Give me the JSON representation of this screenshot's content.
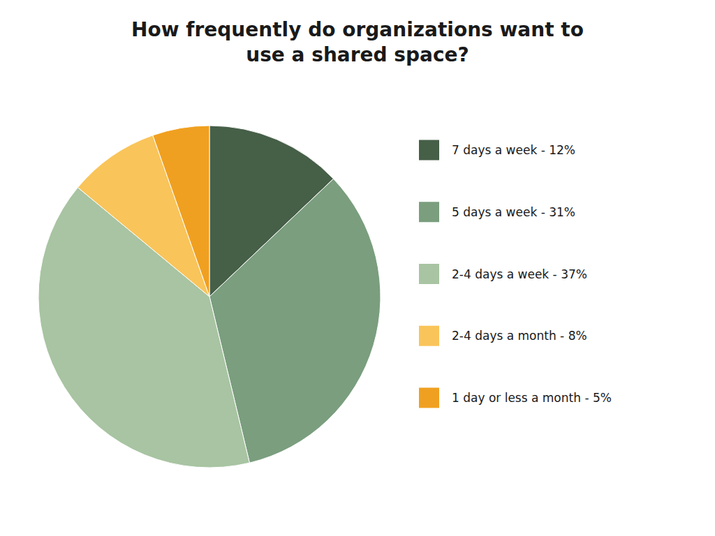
{
  "chart_data": {
    "type": "pie",
    "title": "How frequently do organizations want to\nuse a shared space?",
    "categories": [
      "7 days a week - 12%",
      "5 days a week - 31%",
      "2-4 days a week - 37%",
      "2-4 days a month - 8%",
      "1 day or less a month - 5%"
    ],
    "values": [
      12,
      31,
      37,
      8,
      5
    ],
    "colors": [
      "#465f47",
      "#7a9e7e",
      "#a8c4a2",
      "#f9c45a",
      "#f0a020"
    ],
    "legend": "right"
  }
}
